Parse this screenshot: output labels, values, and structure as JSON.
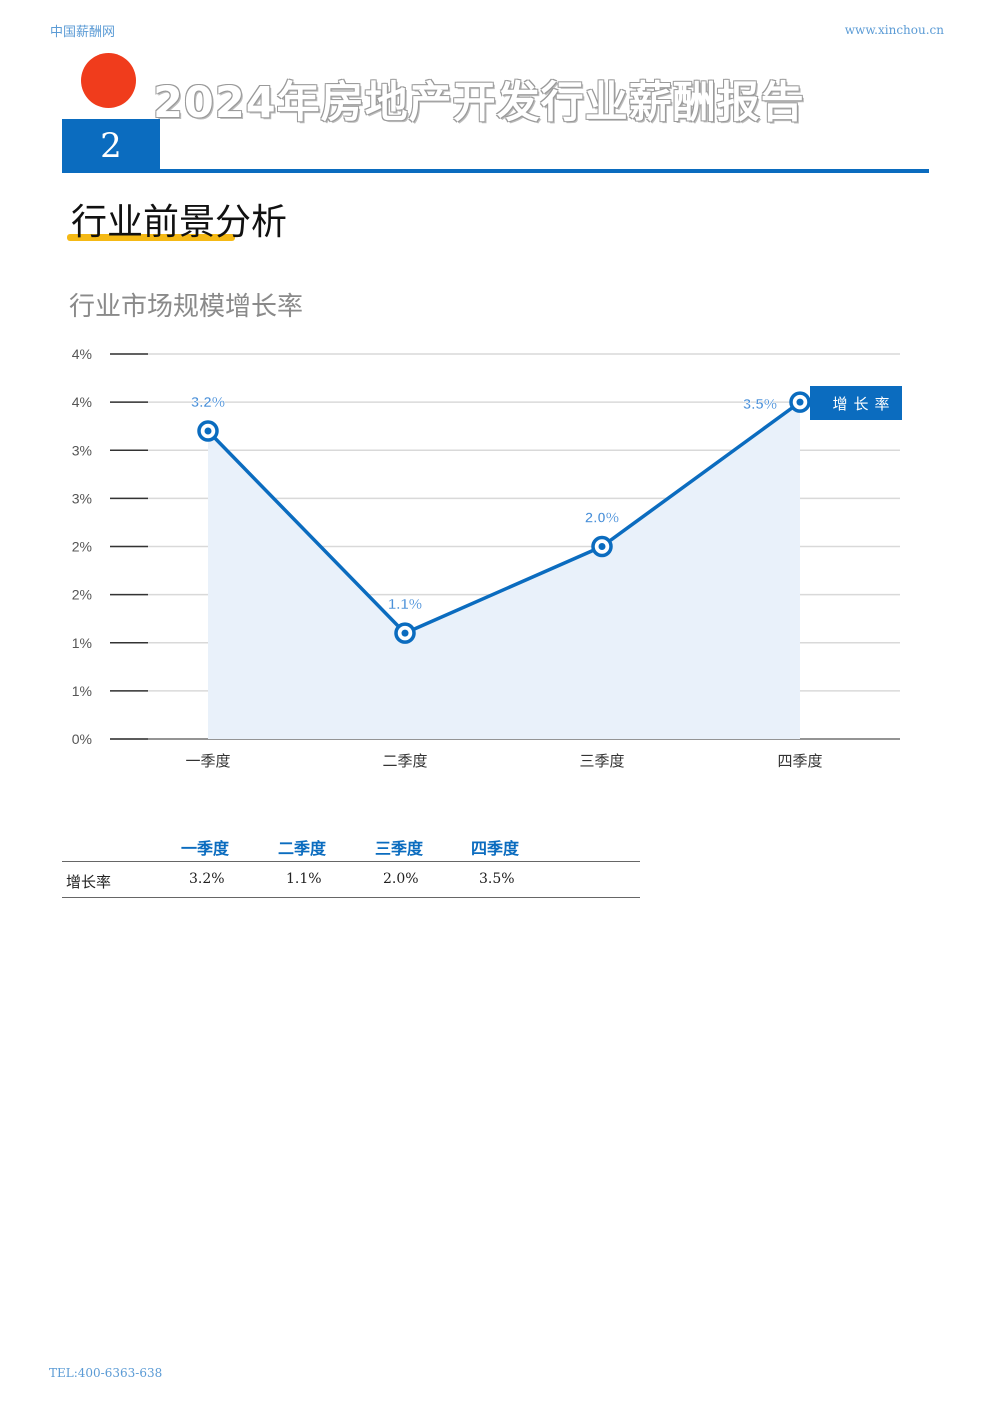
{
  "header": {
    "site_name": "中国薪酬网",
    "site_url": "www.xinchou.cn"
  },
  "report_title": "2024年房地产开发行业薪酬报告",
  "chapter_number": "2",
  "section_title": "行业前景分析",
  "chart_data": {
    "type": "line",
    "title": "行业市场规模增长率",
    "categories": [
      "一季度",
      "二季度",
      "三季度",
      "四季度"
    ],
    "y_tick_labels": [
      "0%",
      "1%",
      "1%",
      "2%",
      "2%",
      "3%",
      "3%",
      "4%",
      "4%"
    ],
    "ylim": [
      0,
      4
    ],
    "series": [
      {
        "name": "增长率",
        "values": [
          3.2,
          1.1,
          2.0,
          3.5
        ],
        "data_labels": [
          "3.2%",
          "1.1%",
          "2.0%",
          "3.5%"
        ],
        "color": "#0b6cbf"
      }
    ],
    "grid": true,
    "legend_placement": "top-right"
  },
  "table": {
    "headers": [
      "一季度",
      "二季度",
      "三季度",
      "四季度"
    ],
    "rows": [
      {
        "label": "增长率",
        "values": [
          "3.2%",
          "1.1%",
          "2.0%",
          "3.5%"
        ]
      }
    ]
  },
  "footer": {
    "tel": "TEL:400-6363-638"
  }
}
